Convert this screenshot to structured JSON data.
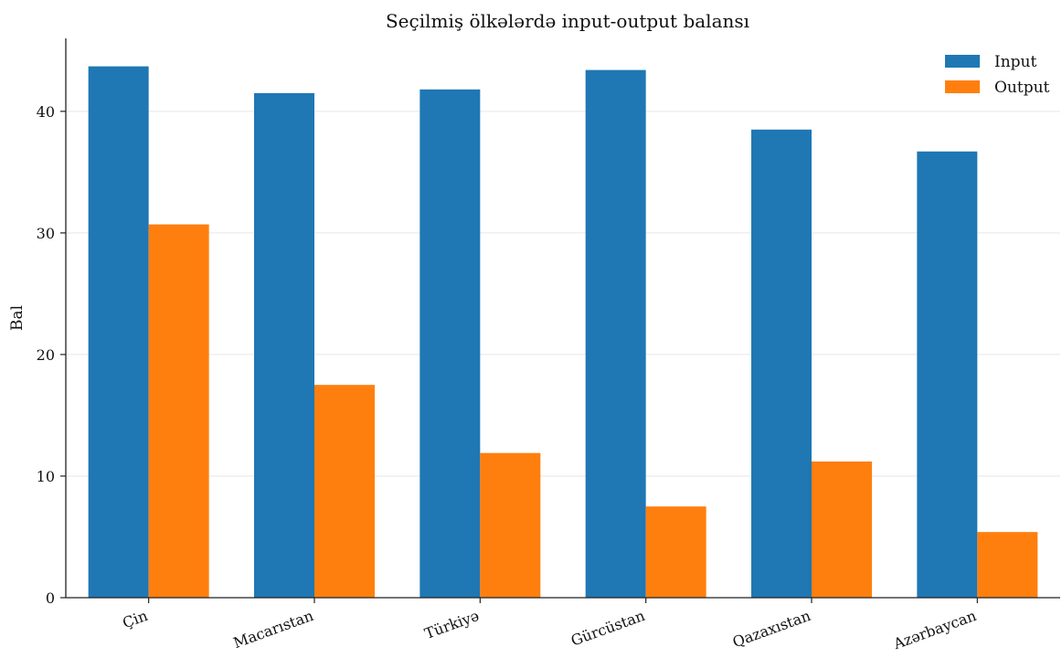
{
  "chart_data": {
    "type": "bar",
    "title": "Seçilmiş ölkələrdə input-output balansı",
    "xlabel": "",
    "ylabel": "Bal",
    "categories": [
      "Çin",
      "Macarıstan",
      "Türkiyə",
      "Gürcüstan",
      "Qazaxıstan",
      "Azərbaycan"
    ],
    "series": [
      {
        "name": "Input",
        "color": "#1f77b4",
        "values": [
          43.7,
          41.5,
          41.8,
          43.4,
          38.5,
          36.7
        ]
      },
      {
        "name": "Output",
        "color": "#ff7f0e",
        "values": [
          30.7,
          17.5,
          11.9,
          7.5,
          11.2,
          5.4
        ]
      }
    ],
    "ylim": [
      0,
      46
    ],
    "yticks": [
      0,
      10,
      20,
      30,
      40
    ],
    "grid": "horizontal",
    "legend": "top-right"
  }
}
